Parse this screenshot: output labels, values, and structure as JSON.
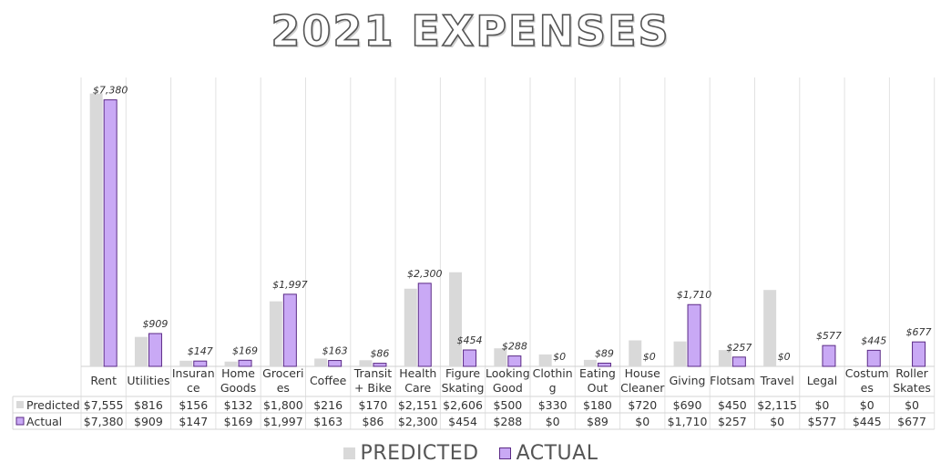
{
  "chart_data": {
    "type": "bar",
    "title": "2021 EXPENSES",
    "categories": [
      [
        "Rent"
      ],
      [
        "Utilities"
      ],
      [
        "Insuran",
        "ce"
      ],
      [
        "Home",
        "Goods"
      ],
      [
        "Groceri",
        "es"
      ],
      [
        "Coffee"
      ],
      [
        "Transit",
        "+ Bike"
      ],
      [
        "Health",
        "Care"
      ],
      [
        "Figure",
        "Skating"
      ],
      [
        "Looking",
        "Good"
      ],
      [
        "Clothin",
        "g"
      ],
      [
        "Eating",
        "Out"
      ],
      [
        "House",
        "Cleaner"
      ],
      [
        "Giving"
      ],
      [
        "Flotsam"
      ],
      [
        "Travel"
      ],
      [
        "Legal"
      ],
      [
        "Costum",
        "es"
      ],
      [
        "Roller",
        "Skates"
      ]
    ],
    "series": [
      {
        "name": "Predicted",
        "legend_label": "PREDICTED",
        "color": "#d9d9d9",
        "values": [
          7555,
          816,
          156,
          132,
          1800,
          216,
          170,
          2151,
          2606,
          500,
          330,
          180,
          720,
          690,
          450,
          2115,
          0,
          0,
          0
        ],
        "table_labels": [
          "$7,555",
          "$816",
          "$156",
          "$132",
          "$1,800",
          "$216",
          "$170",
          "$2,151",
          "$2,606",
          "$500",
          "$330",
          "$180",
          "$720",
          "$690",
          "$450",
          "$2,115",
          "$0",
          "$0",
          "$0"
        ]
      },
      {
        "name": "Actual",
        "legend_label": "ACTUAL",
        "color": "#c9a9f5",
        "stroke": "#5b2a86",
        "values": [
          7380,
          909,
          147,
          169,
          1997,
          163,
          86,
          2300,
          454,
          288,
          0,
          89,
          0,
          1710,
          257,
          0,
          577,
          445,
          677
        ],
        "table_labels": [
          "$7,380",
          "$909",
          "$147",
          "$169",
          "$1,997",
          "$163",
          "$86",
          "$2,300",
          "$454",
          "$288",
          "$0",
          "$89",
          "$0",
          "$1,710",
          "$257",
          "$0",
          "$577",
          "$445",
          "$677"
        ],
        "data_labels": [
          "$7,380",
          "$909",
          "$147",
          "$169",
          "$1,997",
          "$163",
          "$86",
          "$2,300",
          "$454",
          "$288",
          "$0",
          "$89",
          "$0",
          "$1,710",
          "$257",
          "$0",
          "$577",
          "$445",
          "$677"
        ]
      }
    ],
    "ylim": [
      0,
      8000
    ],
    "grid": true,
    "data_table": true,
    "legend_position": "bottom"
  }
}
